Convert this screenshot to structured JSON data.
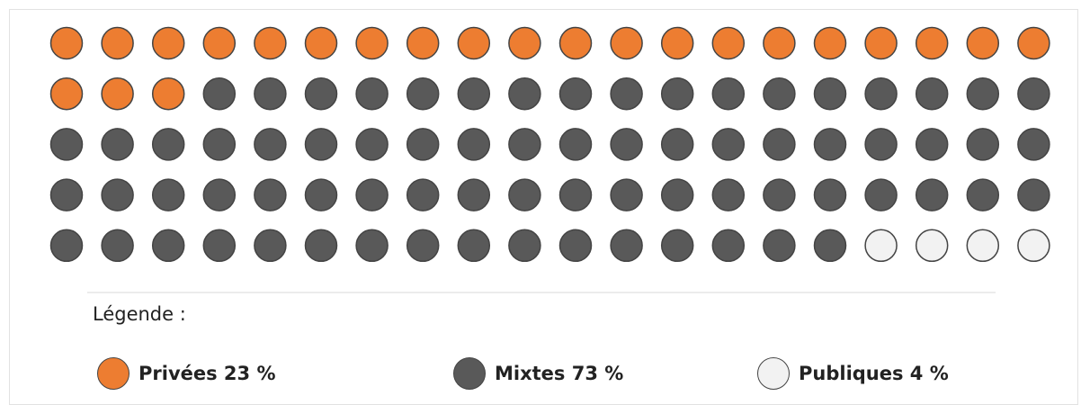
{
  "chart_data": {
    "type": "waffle",
    "total_units": 100,
    "rows": 5,
    "columns": 20,
    "series": [
      {
        "name": "Privées",
        "value": 23,
        "percent_label": "23 %",
        "color": "#ED7D31"
      },
      {
        "name": "Mixtes",
        "value": 73,
        "percent_label": "73 %",
        "color": "#595959"
      },
      {
        "name": "Publiques",
        "value": 4,
        "percent_label": "4 %",
        "color": "#F2F2F2"
      }
    ]
  },
  "legend": {
    "title": "Légende :",
    "items": [
      {
        "label": "Privées 23 %",
        "color": "#ED7D31"
      },
      {
        "label": "Mixtes 73 %",
        "color": "#595959"
      },
      {
        "label": "Publiques 4 %",
        "color": "#F2F2F2"
      }
    ]
  },
  "colors": {
    "outline": "#444444",
    "separator": "#d9d9d9"
  }
}
